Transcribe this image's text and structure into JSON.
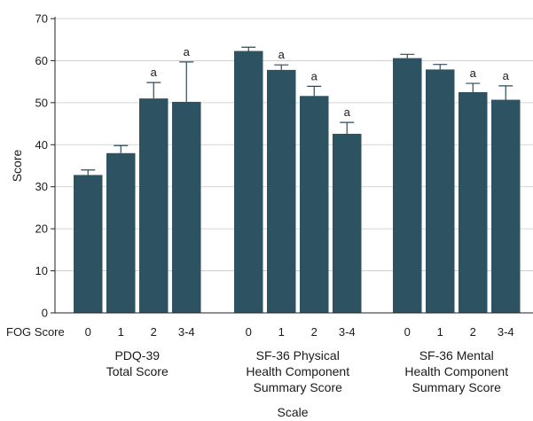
{
  "chart_data": {
    "type": "bar",
    "ylabel": "Score",
    "xlabel": "Scale",
    "fog_label": "FOG Score",
    "ylim": [
      0,
      70
    ],
    "yticks": [
      0,
      10,
      20,
      30,
      40,
      50,
      60,
      70
    ],
    "grid": true,
    "bar_color": "#2d5363",
    "groups": [
      {
        "name_lines": [
          "PDQ-39",
          "Total Score"
        ],
        "categories": [
          "0",
          "1",
          "2",
          "3-4"
        ],
        "values": [
          32.8,
          38.0,
          51.0,
          50.2
        ],
        "errors": [
          1.2,
          1.8,
          3.8,
          9.5
        ],
        "significance": [
          "",
          "",
          "a",
          "a"
        ]
      },
      {
        "name_lines": [
          "SF-36 Physical",
          "Health Component",
          "Summary Score"
        ],
        "categories": [
          "0",
          "1",
          "2",
          "3-4"
        ],
        "values": [
          62.3,
          57.8,
          51.6,
          42.6
        ],
        "errors": [
          0.9,
          1.2,
          2.3,
          2.7
        ],
        "significance": [
          "",
          "a",
          "a",
          "a"
        ]
      },
      {
        "name_lines": [
          "SF-36 Mental",
          "Health Component",
          "Summary Score"
        ],
        "categories": [
          "0",
          "1",
          "2",
          "3-4"
        ],
        "values": [
          60.6,
          57.9,
          52.5,
          50.7
        ],
        "errors": [
          0.9,
          1.2,
          2.1,
          3.3
        ],
        "significance": [
          "",
          "",
          "a",
          "a"
        ]
      }
    ]
  }
}
